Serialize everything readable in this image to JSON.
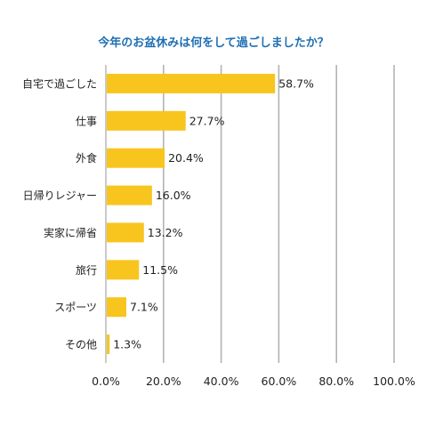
{
  "chart_data": {
    "type": "bar",
    "orientation": "horizontal",
    "title": "今年のお盆休みは何をして過ごしましたか？",
    "categories": [
      "自宅で過ごした",
      "仕事",
      "外食",
      "日帰りレジャー",
      "実家に帰省",
      "旅行",
      "スポーツ",
      "その他"
    ],
    "values": [
      58.7,
      27.7,
      20.4,
      16.0,
      13.2,
      11.5,
      7.1,
      1.3
    ],
    "value_labels": [
      "58.7%",
      "27.7%",
      "20.4%",
      "16.0%",
      "13.2%",
      "11.5%",
      "7.1%",
      "1.3%"
    ],
    "xlim": [
      0,
      100
    ],
    "xticks": [
      0,
      20,
      40,
      60,
      80,
      100
    ],
    "xtick_labels": [
      "0.0%",
      "20.0%",
      "40.0%",
      "60.0%",
      "80.0%",
      "100.0%"
    ],
    "grid": true,
    "legend": "none",
    "colors": {
      "bar": "#f7c51e",
      "grid": "#b3b3b3",
      "title": "#1f6fb2",
      "text": "#222222"
    }
  }
}
